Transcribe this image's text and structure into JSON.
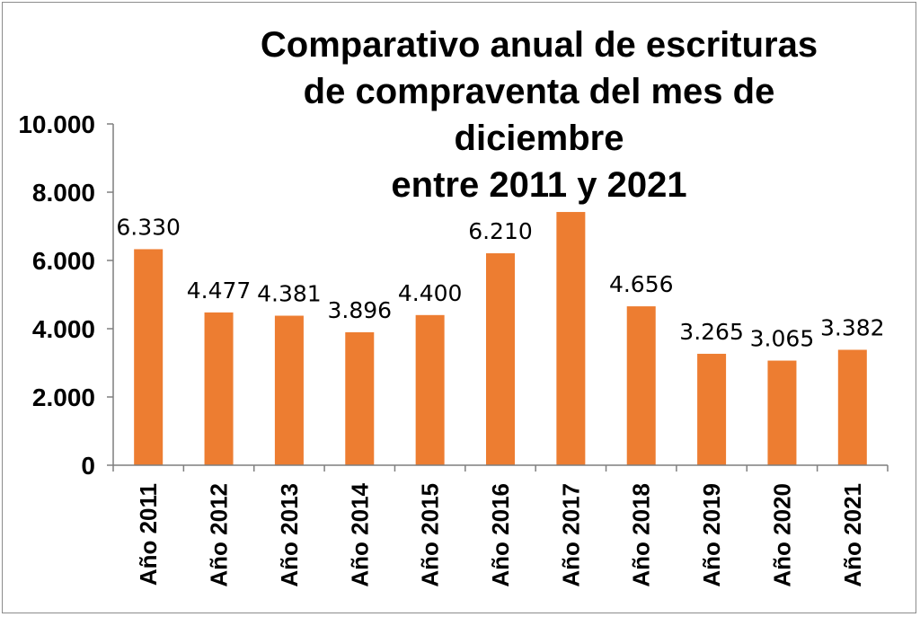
{
  "chart_data": {
    "type": "bar",
    "title_lines": [
      "Comparativo anual de escrituras",
      "de compraventa del mes de",
      "diciembre",
      "entre 2011 y 2021"
    ],
    "categories": [
      "Año 2011",
      "Año 2012",
      "Año 2013",
      "Año 2014",
      "Año 2015",
      "Año 2016",
      "Año 2017",
      "Año 2018",
      "Año 2019",
      "Año 2020",
      "Año 2021"
    ],
    "values": [
      6330,
      4477,
      4381,
      3896,
      4400,
      6210,
      7420,
      4656,
      3265,
      3065,
      3382
    ],
    "data_labels": [
      "6.330",
      "4.477",
      "4.381",
      "3.896",
      "4.400",
      "6.210",
      "",
      "4.656",
      "3.265",
      "3.065",
      "3.382"
    ],
    "yticks": [
      0,
      2000,
      4000,
      6000,
      8000,
      10000
    ],
    "ytick_labels": [
      "0",
      "2.000",
      "4.000",
      "6.000",
      "8.000",
      "10.000"
    ],
    "ylim": [
      0,
      10000
    ],
    "xlabel": "",
    "ylabel": "",
    "grid": false,
    "legend": "none",
    "bar_color": "#ED7D31"
  }
}
